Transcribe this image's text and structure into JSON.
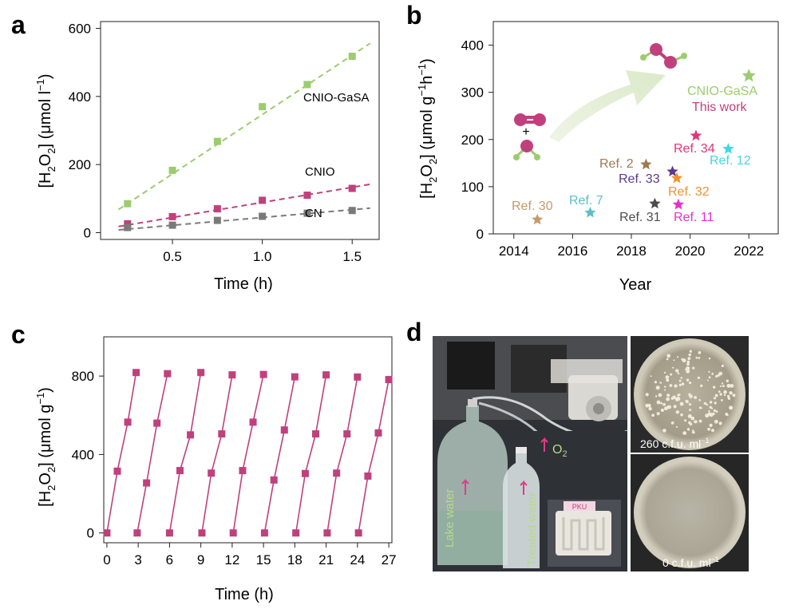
{
  "panels": {
    "a": "a",
    "b": "b",
    "c": "c",
    "d": "d"
  },
  "chart_data": [
    {
      "panel": "a",
      "type": "scatter",
      "xlabel": "Time (h)",
      "ylabel_parts": [
        "[H",
        "2",
        "O",
        "2",
        "] (μmol l",
        "−1",
        ")"
      ],
      "xlim": [
        0.1,
        1.65
      ],
      "ylim": [
        -20,
        620
      ],
      "xticks": [
        "0.5",
        "1.0",
        "1.5"
      ],
      "xtick_values": [
        0.5,
        1.0,
        1.5
      ],
      "yticks": [
        "0",
        "200",
        "400",
        "600"
      ],
      "ytick_values": [
        0,
        200,
        400,
        600
      ],
      "series": [
        {
          "name": "CNIO-GaSA",
          "color": "#9ccc6e",
          "x": [
            0.25,
            0.5,
            0.75,
            1.0,
            1.25,
            1.5
          ],
          "y": [
            85,
            183,
            268,
            370,
            435,
            518
          ],
          "fit": [
            [
              0.2,
              68
            ],
            [
              1.6,
              556
            ]
          ]
        },
        {
          "name": "CNIO",
          "color": "#c0407d",
          "x": [
            0.25,
            0.5,
            0.75,
            1.0,
            1.25,
            1.5
          ],
          "y": [
            26,
            47,
            70,
            95,
            110,
            130
          ],
          "fit": [
            [
              0.2,
              18
            ],
            [
              1.6,
              142
            ]
          ]
        },
        {
          "name": "CN",
          "color": "#7a7a7a",
          "x": [
            0.25,
            0.5,
            0.75,
            1.0,
            1.25,
            1.5
          ],
          "y": [
            15,
            22,
            36,
            48,
            57,
            65
          ],
          "fit": [
            [
              0.2,
              8
            ],
            [
              1.6,
              72
            ]
          ]
        }
      ]
    },
    {
      "panel": "b",
      "type": "scatter",
      "xlabel": "Year",
      "ylabel_parts": [
        "[H",
        "2",
        "O",
        "2",
        "] (μmol g",
        "−1",
        "h",
        "−1",
        ")"
      ],
      "xlim": [
        2013.3,
        2023.0
      ],
      "ylim": [
        0,
        450
      ],
      "xticks": [
        "2014",
        "2016",
        "2018",
        "2020",
        "2022"
      ],
      "xtick_values": [
        2014,
        2016,
        2018,
        2020,
        2022
      ],
      "yticks": [
        "0",
        "100",
        "200",
        "300",
        "400"
      ],
      "ytick_values": [
        0,
        100,
        200,
        300,
        400
      ],
      "points": [
        {
          "label": "Ref. 30",
          "x": 2014.8,
          "y": 30,
          "color": "#c49a6c"
        },
        {
          "label": "Ref. 7",
          "x": 2016.6,
          "y": 45,
          "color": "#5bc0c6"
        },
        {
          "label": "Ref. 2",
          "x": 2018.5,
          "y": 147,
          "color": "#a07850"
        },
        {
          "label": "Ref. 31",
          "x": 2018.8,
          "y": 64,
          "color": "#4d4d4d"
        },
        {
          "label": "Ref. 33",
          "x": 2019.4,
          "y": 132,
          "color": "#5b3a8c"
        },
        {
          "label": "Ref. 32",
          "x": 2019.55,
          "y": 118,
          "color": "#f0922a"
        },
        {
          "label": "Ref. 11",
          "x": 2019.6,
          "y": 62,
          "color": "#e830c8"
        },
        {
          "label": "Ref. 34",
          "x": 2020.2,
          "y": 208,
          "color": "#e0357a"
        },
        {
          "label": "Ref. 12",
          "x": 2021.3,
          "y": 180,
          "color": "#40d8e0"
        },
        {
          "label": "CNIO-GaSA",
          "x": 2022.0,
          "y": 335,
          "color": "#9ccc6e"
        }
      ],
      "annotations": {
        "this_work": "This work",
        "plus": "+"
      }
    },
    {
      "panel": "c",
      "type": "line",
      "xlabel": "Time (h)",
      "ylabel_parts": [
        "[H",
        "2",
        "O",
        "2",
        "] (μmol g",
        "−1",
        ")"
      ],
      "xlim": [
        -0.3,
        27.3
      ],
      "ylim": [
        -50,
        1000
      ],
      "xticks": [
        "0",
        "3",
        "6",
        "9",
        "12",
        "15",
        "18",
        "21",
        "24",
        "27"
      ],
      "xtick_values": [
        0,
        3,
        6,
        9,
        12,
        15,
        18,
        21,
        24,
        27
      ],
      "yticks": [
        "0",
        "400",
        "800"
      ],
      "ytick_values": [
        0,
        400,
        800
      ],
      "color": "#c0407d",
      "cycles": [
        {
          "x": [
            0,
            1,
            2,
            2.8
          ],
          "y": [
            0,
            315,
            565,
            818
          ]
        },
        {
          "x": [
            2.9,
            3.8,
            4.8,
            5.8
          ],
          "y": [
            0,
            255,
            560,
            812
          ]
        },
        {
          "x": [
            6,
            7,
            8,
            9
          ],
          "y": [
            0,
            318,
            500,
            818
          ]
        },
        {
          "x": [
            9.1,
            10,
            11,
            12
          ],
          "y": [
            0,
            305,
            505,
            806
          ]
        },
        {
          "x": [
            12.1,
            13,
            14,
            15
          ],
          "y": [
            0,
            318,
            565,
            808
          ]
        },
        {
          "x": [
            15.1,
            16,
            17,
            18
          ],
          "y": [
            0,
            270,
            525,
            796
          ]
        },
        {
          "x": [
            18.1,
            19,
            20,
            21
          ],
          "y": [
            0,
            303,
            505,
            806
          ]
        },
        {
          "x": [
            21.1,
            22,
            23,
            24
          ],
          "y": [
            0,
            305,
            505,
            795
          ]
        },
        {
          "x": [
            24.1,
            25,
            26,
            27
          ],
          "y": [
            0,
            290,
            510,
            782
          ]
        }
      ]
    }
  ],
  "photos": {
    "left_labels": {
      "lake": "Lake water",
      "treated": "Treated water",
      "o2": "O",
      "o2_sub": "2",
      "chip": "PKU"
    },
    "top_right_label": {
      "count": "260 c.f.u. ml",
      "sup": "−1"
    },
    "bottom_right_label": {
      "count": "0 c.f.u. ml",
      "sup": "−1"
    }
  }
}
